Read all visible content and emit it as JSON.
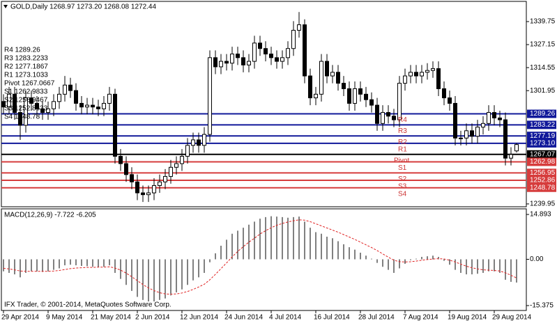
{
  "chart_data": [
    {
      "type": "candlestick",
      "title": "GOLD,Daily 1268.97 1273.20 1268.08 1272.44",
      "categories": [
        "29 Apr 2014",
        null,
        null,
        null,
        null,
        null,
        null,
        null,
        "9 May 2014",
        null,
        null,
        null,
        null,
        null,
        null,
        null,
        "21 May 2014",
        null,
        null,
        null,
        null,
        null,
        null,
        null,
        "2 Jun 2014",
        null,
        null,
        null,
        null,
        null,
        null,
        null,
        "12 Jun 2014",
        null,
        null,
        null,
        null,
        null,
        null,
        null,
        "24 Jun 2014",
        null,
        null,
        null,
        null,
        null,
        null,
        null,
        "4 Jul 2014",
        null,
        null,
        null,
        null,
        null,
        null,
        null,
        "16 Jul 2014",
        null,
        null,
        null,
        null,
        null,
        null,
        null,
        "28 Jul 2014",
        null,
        null,
        null,
        null,
        null,
        null,
        null,
        "7 Aug 2014",
        null,
        null,
        null,
        null,
        null,
        null,
        null,
        "19 Aug 2014",
        null,
        null,
        null,
        null,
        null,
        null,
        null,
        "29 Aug 2014",
        null,
        null,
        null,
        null
      ],
      "open": [
        1296,
        1293,
        1300,
        1290,
        1283,
        1298,
        1295,
        1292,
        1290,
        1292,
        1296,
        1300,
        1305,
        1302,
        1295,
        1293,
        1294,
        1293,
        1292,
        1295,
        1300,
        1266,
        1262,
        1256,
        1252,
        1246,
        1245,
        1246,
        1250,
        1252,
        1255,
        1260,
        1262,
        1266,
        1272,
        1275,
        1272,
        1278,
        1320,
        1315,
        1318,
        1317,
        1322,
        1320,
        1316,
        1318,
        1328,
        1325,
        1322,
        1320,
        1318,
        1320,
        1325,
        1335,
        1338,
        1310,
        1298,
        1300,
        1318,
        1310,
        1312,
        1306,
        1303,
        1295,
        1303,
        1300,
        1297,
        1294,
        1284,
        1290,
        1288,
        1286,
        1306,
        1310,
        1312,
        1310,
        1312,
        1313,
        1314,
        1303,
        1298,
        1295,
        1276,
        1276,
        1280,
        1277,
        1282,
        1284,
        1290,
        1287,
        1286,
        1265,
        1268.97
      ],
      "high": [
        1300,
        1304,
        1304,
        1294,
        1302,
        1302,
        1299,
        1296,
        1296,
        1300,
        1304,
        1310,
        1309,
        1306,
        1299,
        1298,
        1298,
        1297,
        1299,
        1304,
        1303,
        1270,
        1266,
        1260,
        1256,
        1250,
        1250,
        1254,
        1256,
        1259,
        1264,
        1266,
        1270,
        1276,
        1279,
        1279,
        1282,
        1324,
        1324,
        1322,
        1322,
        1326,
        1326,
        1324,
        1322,
        1332,
        1332,
        1329,
        1326,
        1324,
        1324,
        1329,
        1340,
        1345,
        1341,
        1314,
        1304,
        1322,
        1322,
        1316,
        1316,
        1310,
        1307,
        1307,
        1307,
        1304,
        1301,
        1298,
        1294,
        1294,
        1292,
        1310,
        1314,
        1316,
        1316,
        1316,
        1317,
        1318,
        1318,
        1307,
        1302,
        1299,
        1280,
        1284,
        1284,
        1286,
        1288,
        1294,
        1294,
        1291,
        1290,
        1271,
        1273.2
      ],
      "low": [
        1289,
        1289,
        1286,
        1275,
        1279,
        1291,
        1288,
        1286,
        1286,
        1288,
        1292,
        1296,
        1298,
        1291,
        1289,
        1289,
        1289,
        1288,
        1288,
        1291,
        1262,
        1258,
        1252,
        1248,
        1242,
        1241,
        1241,
        1242,
        1246,
        1248,
        1251,
        1256,
        1258,
        1262,
        1268,
        1268,
        1268,
        1274,
        1311,
        1311,
        1313,
        1313,
        1316,
        1312,
        1312,
        1314,
        1321,
        1318,
        1316,
        1314,
        1314,
        1316,
        1321,
        1331,
        1306,
        1294,
        1294,
        1296,
        1306,
        1306,
        1302,
        1299,
        1291,
        1291,
        1296,
        1293,
        1290,
        1280,
        1280,
        1284,
        1282,
        1282,
        1302,
        1306,
        1306,
        1306,
        1308,
        1309,
        1299,
        1294,
        1291,
        1272,
        1272,
        1272,
        1273,
        1273,
        1278,
        1280,
        1283,
        1282,
        1261,
        1261,
        1268.08
      ],
      "close": [
        1293,
        1300,
        1290,
        1283,
        1298,
        1295,
        1292,
        1290,
        1292,
        1296,
        1300,
        1305,
        1302,
        1295,
        1293,
        1294,
        1293,
        1292,
        1295,
        1300,
        1266,
        1262,
        1256,
        1252,
        1246,
        1245,
        1246,
        1250,
        1252,
        1255,
        1260,
        1262,
        1266,
        1272,
        1275,
        1272,
        1278,
        1320,
        1315,
        1318,
        1317,
        1322,
        1320,
        1316,
        1318,
        1328,
        1325,
        1322,
        1320,
        1318,
        1320,
        1325,
        1335,
        1338,
        1310,
        1298,
        1300,
        1318,
        1310,
        1312,
        1306,
        1303,
        1295,
        1303,
        1300,
        1297,
        1294,
        1284,
        1290,
        1288,
        1286,
        1306,
        1310,
        1312,
        1310,
        1312,
        1313,
        1314,
        1303,
        1298,
        1295,
        1276,
        1276,
        1280,
        1277,
        1282,
        1284,
        1290,
        1287,
        1286,
        1265,
        1267,
        1272.44
      ],
      "up_color": "#ffffff",
      "down_color": "#000000",
      "ylim": [
        1238.4,
        1350.8
      ],
      "yticks": [
        1239.95,
        1301.95,
        1314.55,
        1327.15,
        1339.75
      ],
      "levels": [
        {
          "name": "R4",
          "label": "R4 1289.26",
          "value": 1289.26,
          "price_label": "1289.26",
          "color": "#10189a"
        },
        {
          "name": "R3",
          "label": "R3 1283.2233",
          "value": 1283.2233,
          "price_label": "1283.22",
          "color": "#10189a"
        },
        {
          "name": "R2",
          "label": "R2 1277.1867",
          "value": 1277.1867,
          "price_label": "1277.19",
          "color": "#10189a"
        },
        {
          "name": "R1",
          "label": "R1 1273.1033",
          "value": 1273.1033,
          "price_label": "1273.10",
          "color": "#10189a"
        },
        {
          "name": "Pivot",
          "label": "Pivot 1267.0667",
          "value": 1267.0667,
          "price_label": "1267.07",
          "color": "#000000"
        },
        {
          "name": "S1",
          "label": "S1 1262.9833",
          "value": 1262.9833,
          "price_label": "1262.98",
          "color": "#d63c3c"
        },
        {
          "name": "S2",
          "label": "S2 1256.9467",
          "value": 1256.9467,
          "price_label": "1256.95",
          "color": "#d63c3c"
        },
        {
          "name": "S3",
          "label": "S3 1252.8633",
          "value": 1252.8633,
          "price_label": "1252.86",
          "color": "#d63c3c"
        },
        {
          "name": "S4",
          "label": "S4 1248.78",
          "value": 1248.78,
          "price_label": "1248.78",
          "color": "#d63c3c"
        }
      ]
    },
    {
      "type": "macd",
      "title": "MACD(12,26,9) -7.722 -6.205",
      "annotation": "IFX Trader, © 2001-2014, MetaQuotes Software Corp.",
      "ylim": [
        -17.0,
        16.76
      ],
      "yticks": [
        -15.375,
        {
          "value": 0,
          "label": "0.00"
        },
        14.893
      ],
      "histogram": {
        "color": "#000000",
        "values": [
          -4,
          -4.5,
          -5,
          -6,
          -4.5,
          -4,
          -4,
          -4.2,
          -4,
          -3.5,
          -3,
          -2,
          -1.8,
          -2,
          -2.2,
          -2.3,
          -2.5,
          -2.6,
          -2.5,
          -2,
          -4.5,
          -6.5,
          -8.5,
          -10.5,
          -12.5,
          -13.5,
          -14,
          -14,
          -13.5,
          -13,
          -12,
          -11,
          -10,
          -8.5,
          -7,
          -6,
          -4.5,
          -1,
          2,
          4.5,
          6.5,
          8.5,
          9.5,
          10.5,
          11.5,
          12.5,
          13.5,
          14,
          14.3,
          14.2,
          14,
          13.8,
          14,
          14.2,
          12.5,
          10.5,
          9,
          8.5,
          7.5,
          7,
          6,
          5,
          4,
          3.2,
          2.2,
          1.2,
          0.2,
          -1.2,
          -2.5,
          -3.5,
          -4.5,
          -3,
          -1.5,
          -0.3,
          0.2,
          0.8,
          1,
          1.2,
          0.8,
          -0.5,
          -1.8,
          -3.5,
          -4.5,
          -5,
          -5,
          -4.8,
          -4.5,
          -4,
          -4,
          -4.5,
          -6.8,
          -7.5,
          -7.722
        ]
      },
      "signal": {
        "color": "#e02020",
        "values": [
          -3,
          -3.2,
          -3.5,
          -3.9,
          -4,
          -4,
          -4,
          -4,
          -4,
          -3.9,
          -3.7,
          -3.4,
          -3.1,
          -2.9,
          -2.8,
          -2.7,
          -2.7,
          -2.6,
          -2.6,
          -2.5,
          -2.9,
          -3.6,
          -4.6,
          -5.8,
          -7.1,
          -8.4,
          -9.5,
          -10.4,
          -11.1,
          -11.5,
          -11.6,
          -11.5,
          -11.2,
          -10.7,
          -10,
          -9.2,
          -8.3,
          -6.8,
          -5,
          -3.1,
          -1.2,
          0.8,
          2.6,
          4.2,
          5.7,
          7,
          8.4,
          9.5,
          10.5,
          11.3,
          11.9,
          12.4,
          12.8,
          13.1,
          13,
          12.5,
          11.8,
          11.1,
          10.4,
          9.7,
          9,
          8.2,
          7.4,
          6.6,
          5.7,
          4.8,
          3.9,
          2.9,
          1.8,
          0.7,
          -0.3,
          -0.8,
          -0.9,
          -0.8,
          -0.6,
          -0.3,
          -0.1,
          0.1,
          0.2,
          0.1,
          -0.3,
          -0.9,
          -1.6,
          -2.3,
          -2.8,
          -3.2,
          -3.5,
          -3.6,
          -3.7,
          -3.9,
          -4.5,
          -5.3,
          -6.205
        ]
      }
    }
  ]
}
